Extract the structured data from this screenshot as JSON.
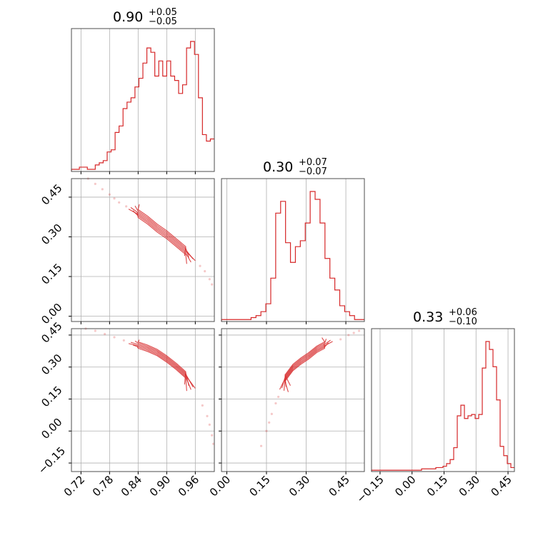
{
  "chart_data": {
    "type": "corner",
    "color": "#d62728",
    "grid": true,
    "parameters": [
      {
        "median": "0.90",
        "plus": "+0.05",
        "minus": "−0.05",
        "range": [
          0.7,
          1.0
        ],
        "ticks": [
          0.72,
          0.78,
          0.84,
          0.9,
          0.96
        ],
        "tick_labels": [
          "0.72",
          "0.78",
          "0.84",
          "0.90",
          "0.96"
        ]
      },
      {
        "median": "0.30",
        "plus": "+0.07",
        "minus": "−0.07",
        "range": [
          -0.02,
          0.52
        ],
        "ticks": [
          0.0,
          0.15,
          0.3,
          0.45
        ],
        "tick_labels": [
          "0.00",
          "0.15",
          "0.30",
          "0.45"
        ]
      },
      {
        "median": "0.33",
        "plus": "+0.06",
        "minus": "−0.10",
        "range": [
          -0.19,
          0.48
        ],
        "ticks": [
          -0.15,
          0.0,
          0.15,
          0.3,
          0.45
        ],
        "tick_labels": [
          "−0.15",
          "0.00",
          "0.15",
          "0.30",
          "0.45"
        ]
      }
    ],
    "hist_1d": [
      {
        "param": 0,
        "values": [
          1,
          1,
          2,
          2,
          1,
          1,
          3,
          4,
          5,
          9,
          10,
          18,
          21,
          29,
          32,
          34,
          39,
          43,
          50,
          57,
          55,
          44,
          51,
          44,
          51,
          44,
          42,
          36,
          40,
          57,
          60,
          54,
          34,
          17,
          14,
          15
        ]
      },
      {
        "param": 1,
        "values": [
          1,
          1,
          1,
          1,
          1,
          1,
          2,
          3,
          5,
          9,
          22,
          55,
          61,
          40,
          30,
          38,
          41,
          50,
          66,
          62,
          50,
          32,
          22,
          16,
          8,
          5,
          3,
          1,
          1
        ]
      },
      {
        "param": 2,
        "values": [
          1,
          1,
          1,
          1,
          1,
          1,
          1,
          1,
          1,
          1,
          1,
          1,
          1,
          1,
          2,
          2,
          2,
          2,
          3,
          3,
          4,
          6,
          9,
          18,
          42,
          50,
          40,
          42,
          43,
          40,
          43,
          78,
          98,
          92,
          79,
          54,
          19,
          12,
          6,
          3
        ]
      }
    ],
    "scatter_2d": [
      {
        "x_param": 0,
        "y_param": 1,
        "points": [
          [
            0.735,
            0.52
          ],
          [
            0.75,
            0.5
          ],
          [
            0.765,
            0.48
          ],
          [
            0.78,
            0.46
          ],
          [
            0.79,
            0.445
          ],
          [
            0.8,
            0.43
          ],
          [
            0.815,
            0.415
          ],
          [
            0.97,
            0.19
          ],
          [
            0.98,
            0.17
          ],
          [
            0.99,
            0.14
          ],
          [
            0.995,
            0.12
          ]
        ],
        "contour_ridge": [
          [
            0.82,
            0.405
          ],
          [
            0.84,
            0.385
          ],
          [
            0.86,
            0.36
          ],
          [
            0.88,
            0.33
          ],
          [
            0.9,
            0.305
          ],
          [
            0.92,
            0.275
          ],
          [
            0.94,
            0.245
          ],
          [
            0.96,
            0.21
          ]
        ]
      },
      {
        "x_param": 0,
        "y_param": 2,
        "points": [
          [
            0.73,
            0.48
          ],
          [
            0.75,
            0.47
          ],
          [
            0.77,
            0.455
          ],
          [
            0.79,
            0.44
          ],
          [
            0.81,
            0.425
          ],
          [
            0.975,
            0.12
          ],
          [
            0.985,
            0.07
          ],
          [
            0.99,
            0.03
          ],
          [
            0.995,
            -0.02
          ],
          [
            0.998,
            -0.06
          ]
        ],
        "contour_ridge": [
          [
            0.82,
            0.41
          ],
          [
            0.84,
            0.4
          ],
          [
            0.86,
            0.385
          ],
          [
            0.88,
            0.365
          ],
          [
            0.9,
            0.335
          ],
          [
            0.92,
            0.3
          ],
          [
            0.94,
            0.26
          ],
          [
            0.96,
            0.2
          ]
        ]
      },
      {
        "x_param": 1,
        "y_param": 2,
        "points": [
          [
            0.13,
            -0.07
          ],
          [
            0.15,
            0.0
          ],
          [
            0.16,
            0.04
          ],
          [
            0.17,
            0.08
          ],
          [
            0.185,
            0.13
          ],
          [
            0.195,
            0.16
          ],
          [
            0.43,
            0.43
          ],
          [
            0.46,
            0.45
          ],
          [
            0.48,
            0.46
          ],
          [
            0.5,
            0.47
          ]
        ],
        "contour_ridge": [
          [
            0.2,
            0.195
          ],
          [
            0.22,
            0.245
          ],
          [
            0.25,
            0.295
          ],
          [
            0.28,
            0.325
          ],
          [
            0.31,
            0.35
          ],
          [
            0.34,
            0.38
          ],
          [
            0.37,
            0.4
          ],
          [
            0.4,
            0.42
          ]
        ]
      }
    ]
  }
}
